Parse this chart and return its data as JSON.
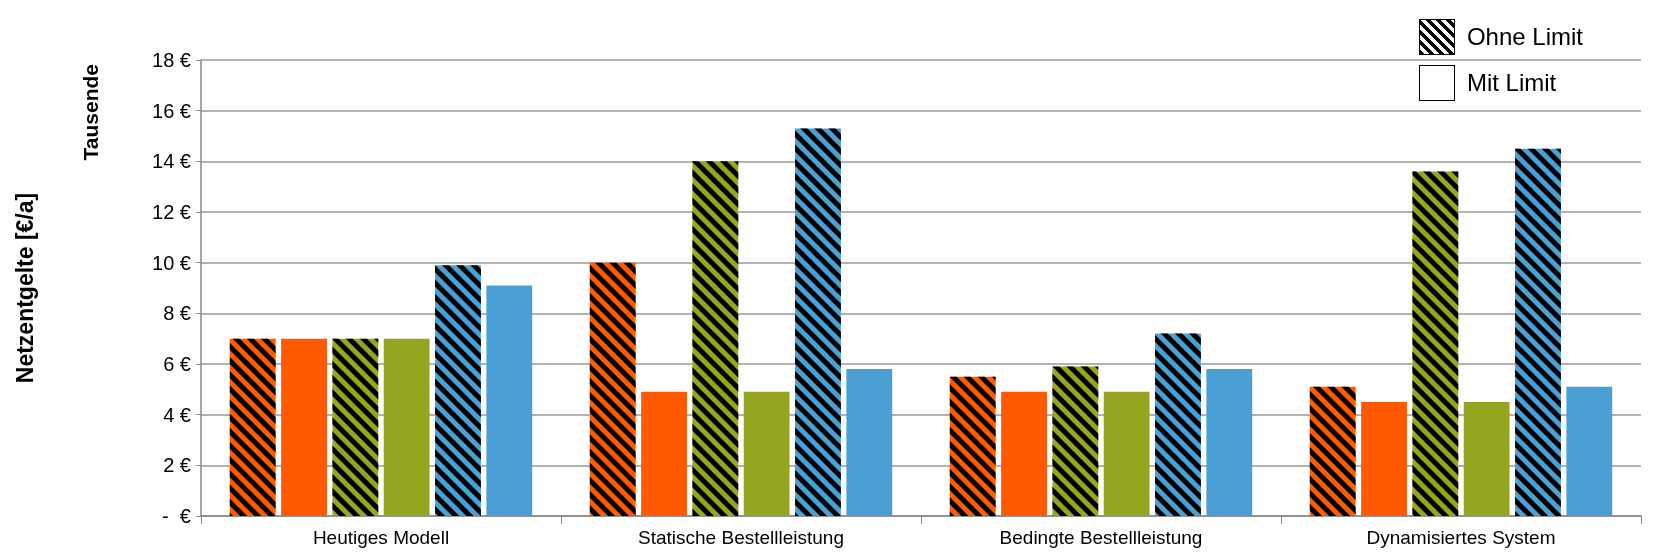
{
  "chart_data": {
    "type": "bar",
    "ylabel": "Netzentgelte [€/a]",
    "annotations": [
      "Tausende",
      "Ohne Limit",
      "Mit Limit"
    ],
    "categories": [
      "Heutiges Modell",
      "Statische Bestellleistung",
      "Bedingte Bestellleistung",
      "Dynamisiertes System"
    ],
    "series": [
      {
        "color": "#ff5a00",
        "values": [
          7.0,
          10.0,
          5.5,
          5.1
        ]
      },
      {
        "color": "#ff5a00",
        "values": [
          7.0,
          4.9,
          4.9,
          4.5
        ]
      },
      {
        "color": "#95a521",
        "values": [
          7.0,
          14.0,
          5.9,
          13.6
        ]
      },
      {
        "color": "#95a521",
        "values": [
          7.0,
          4.9,
          4.9,
          4.5
        ]
      },
      {
        "color": "#4a9fd5",
        "values": [
          9.9,
          15.3,
          7.2,
          14.5
        ]
      },
      {
        "color": "#4a9fd5",
        "values": [
          9.1,
          5.8,
          5.8,
          5.1
        ]
      }
    ],
    "ylim": [
      0,
      18
    ],
    "yticks": [
      {
        "value": 0,
        "label": "-  €"
      },
      {
        "value": 2,
        "label": "2 €"
      },
      {
        "value": 4,
        "label": "4 €"
      },
      {
        "value": 6,
        "label": "6 €"
      },
      {
        "value": 8,
        "label": "8 €"
      },
      {
        "value": 10,
        "label": "10 €"
      },
      {
        "value": 12,
        "label": "12 €"
      },
      {
        "value": 14,
        "label": "14 €"
      },
      {
        "value": 16,
        "label": "16 €"
      },
      {
        "value": 18,
        "label": "18 €"
      }
    ],
    "grid": "y"
  }
}
